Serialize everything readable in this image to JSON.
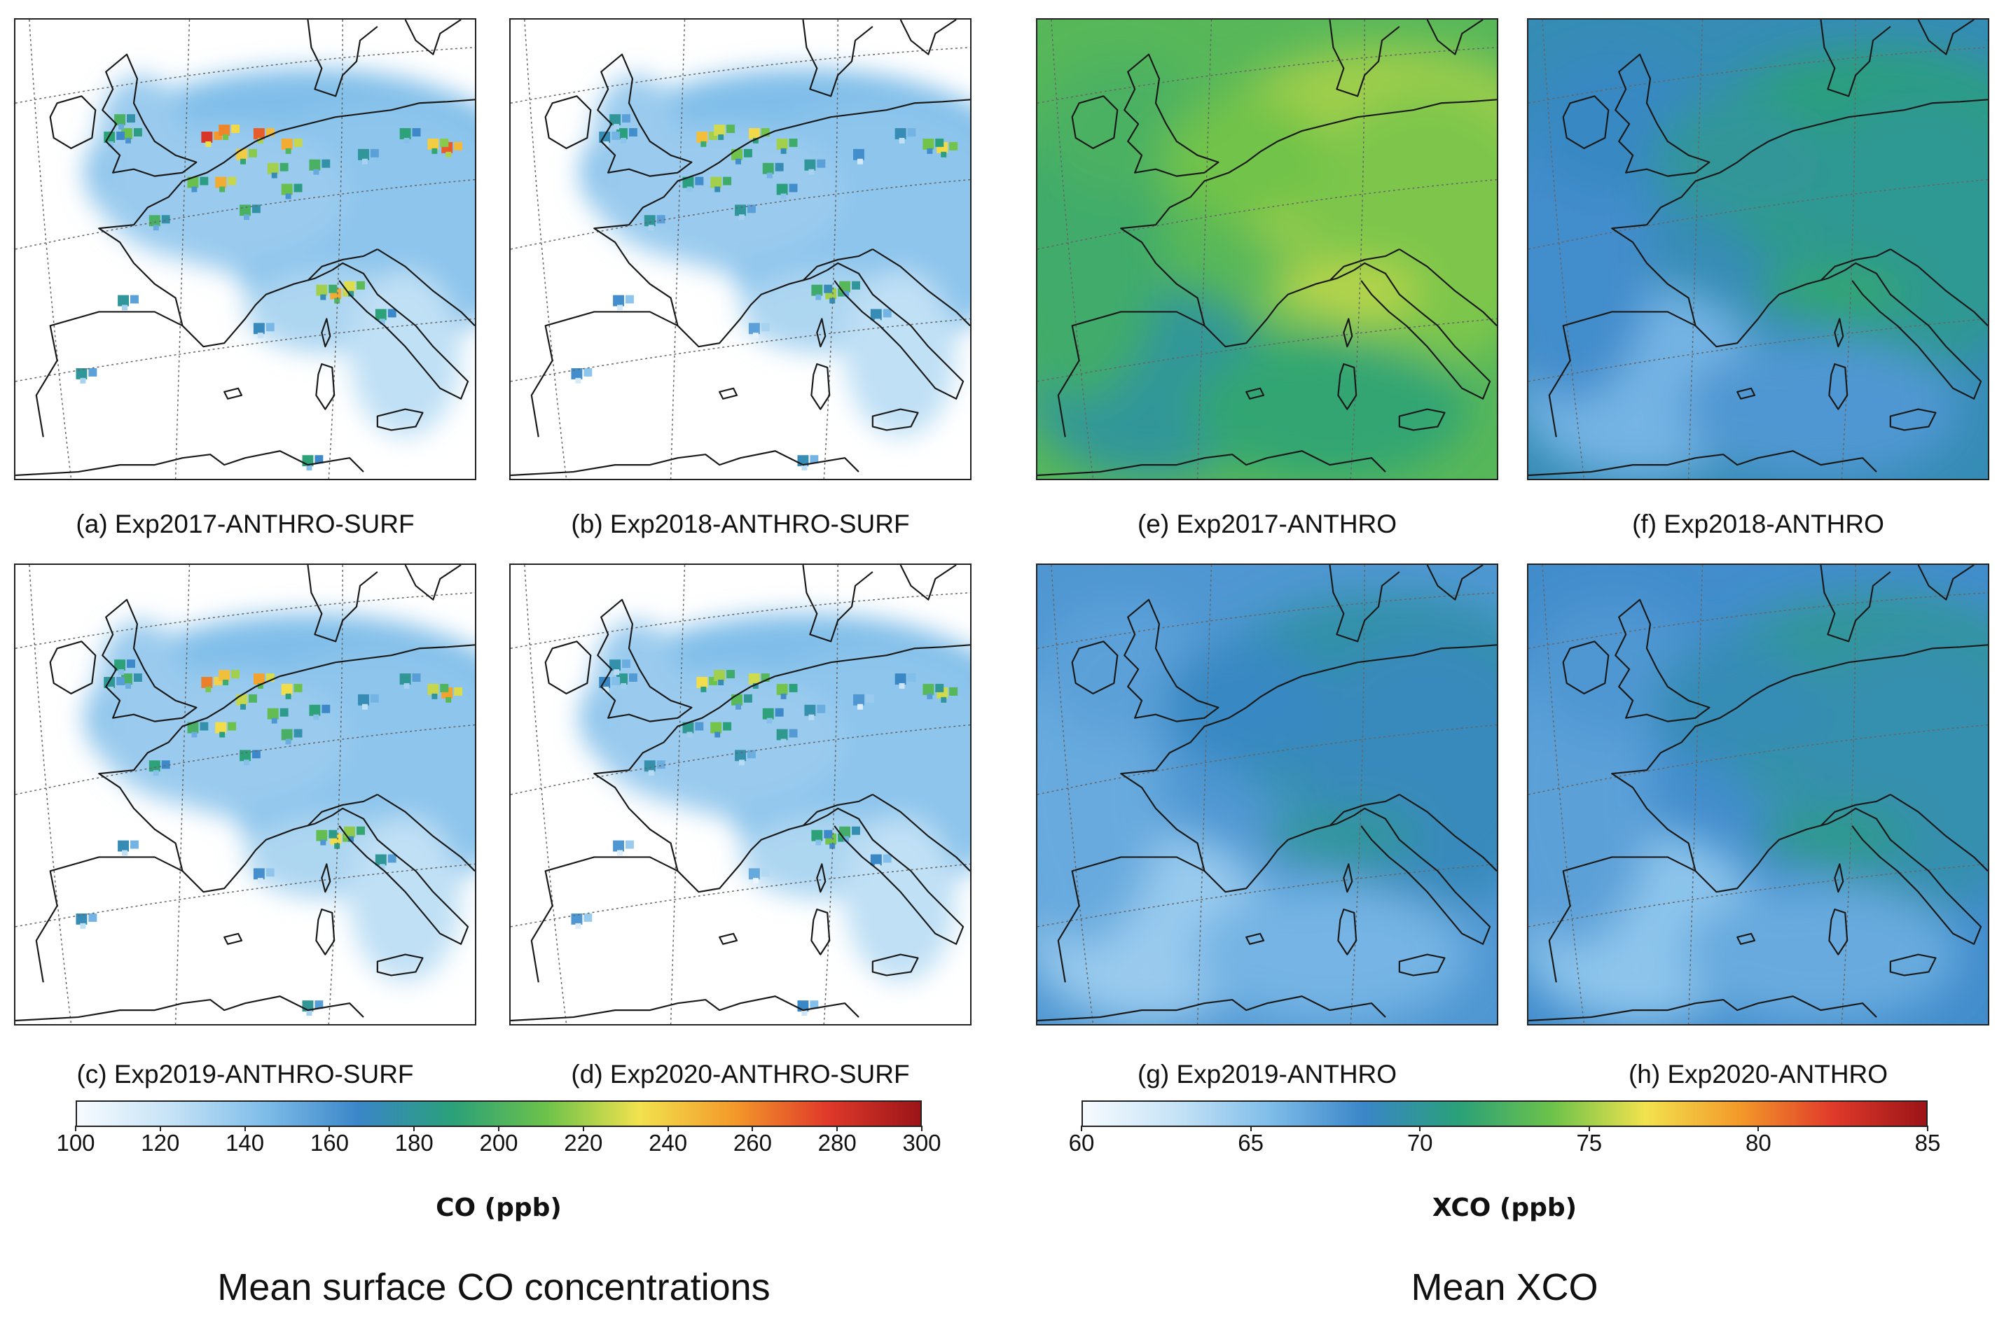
{
  "panels": [
    {
      "id": "a",
      "caption": "(a) Exp2017-ANTHRO-SURF",
      "variable": "surface CO",
      "style": "surf",
      "intensity": 1.0
    },
    {
      "id": "b",
      "caption": "(b) Exp2018-ANTHRO-SURF",
      "variable": "surface CO",
      "style": "surf",
      "intensity": 0.8
    },
    {
      "id": "c",
      "caption": "(c) Exp2019-ANTHRO-SURF",
      "variable": "surface CO",
      "style": "surf",
      "intensity": 0.9
    },
    {
      "id": "d",
      "caption": "(d) Exp2020-ANTHRO-SURF",
      "variable": "surface CO",
      "style": "surf",
      "intensity": 0.75
    },
    {
      "id": "e",
      "caption": "(e) Exp2017-ANTHRO",
      "variable": "XCO",
      "style": "col",
      "level": 73
    },
    {
      "id": "f",
      "caption": "(f) Exp2018-ANTHRO",
      "variable": "XCO",
      "style": "col",
      "level": 69
    },
    {
      "id": "g",
      "caption": "(g) Exp2019-ANTHRO",
      "variable": "XCO",
      "style": "col",
      "level": 67.5
    },
    {
      "id": "h",
      "caption": "(h) Exp2020-ANTHRO",
      "variable": "XCO",
      "style": "col",
      "level": 68
    }
  ],
  "colorbars": {
    "co": {
      "label": "CO (ppb)",
      "min": 100,
      "max": 300,
      "ticks": [
        "100",
        "120",
        "140",
        "160",
        "180",
        "200",
        "220",
        "240",
        "260",
        "280",
        "300"
      ]
    },
    "xco": {
      "label": "XCO (ppb)",
      "min": 60,
      "max": 85,
      "ticks": [
        "60",
        "65",
        "70",
        "75",
        "80",
        "85"
      ]
    }
  },
  "colormap": [
    "#f7fbff",
    "#c6e3f6",
    "#7fbde9",
    "#3a86c8",
    "#2aa07a",
    "#6cc24a",
    "#f2e24e",
    "#f39a2a",
    "#e03a2a",
    "#9b1418"
  ],
  "section_titles": {
    "left": "Mean surface CO concentrations",
    "right": "Mean XCO"
  }
}
